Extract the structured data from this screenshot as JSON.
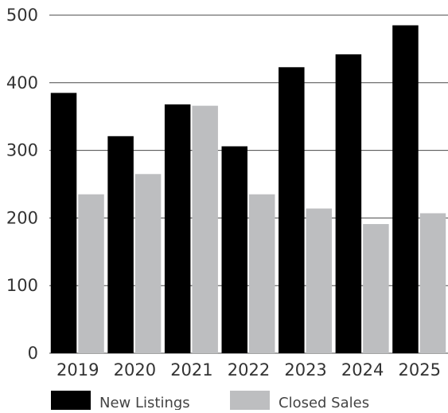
{
  "chart_data": {
    "type": "bar",
    "categories": [
      "2019",
      "2020",
      "2021",
      "2022",
      "2023",
      "2024",
      "2025"
    ],
    "series": [
      {
        "name": "New Listings",
        "color": "#000000",
        "values": [
          385,
          321,
          368,
          306,
          423,
          442,
          485
        ]
      },
      {
        "name": "Closed Sales",
        "color": "#bdbec0",
        "values": [
          235,
          265,
          366,
          235,
          214,
          191,
          207
        ]
      }
    ],
    "title": "",
    "xlabel": "",
    "ylabel": "",
    "ylim": [
      0,
      500
    ],
    "yticks": [
      "0",
      "100",
      "200",
      "300",
      "400",
      "500"
    ],
    "grid": true,
    "legend_position": "bottom-left"
  }
}
